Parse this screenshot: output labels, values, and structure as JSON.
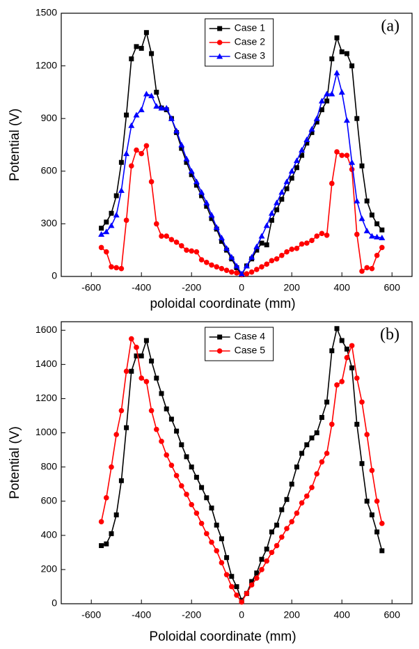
{
  "chart_data": [
    {
      "type": "line",
      "annotation": "(a)",
      "x_label": "poloidal coordinate (mm)",
      "y_label": "Potential (V)",
      "xlim": [
        -720,
        680
      ],
      "ylim": [
        0,
        1500
      ],
      "xticks": [
        -600,
        -400,
        -200,
        0,
        200,
        400,
        600
      ],
      "yticks": [
        0,
        300,
        600,
        900,
        1200,
        1500
      ],
      "legend": "upper center",
      "x": [
        -560,
        -540,
        -520,
        -500,
        -480,
        -460,
        -440,
        -420,
        -400,
        -380,
        -360,
        -340,
        -320,
        -300,
        -280,
        -260,
        -240,
        -220,
        -200,
        -180,
        -160,
        -140,
        -120,
        -100,
        -80,
        -60,
        -40,
        -20,
        0,
        20,
        40,
        60,
        80,
        100,
        120,
        140,
        160,
        180,
        200,
        220,
        240,
        260,
        280,
        300,
        320,
        340,
        360,
        380,
        400,
        420,
        440,
        460,
        480,
        500,
        520,
        540,
        560
      ],
      "series": [
        {
          "name": "Case 1",
          "color": "#000000",
          "marker": "square",
          "values": [
            275,
            310,
            360,
            460,
            650,
            920,
            1240,
            1310,
            1300,
            1390,
            1270,
            1050,
            960,
            950,
            900,
            820,
            730,
            650,
            580,
            520,
            460,
            400,
            330,
            270,
            200,
            150,
            100,
            50,
            10,
            60,
            100,
            150,
            190,
            180,
            320,
            380,
            440,
            500,
            560,
            620,
            690,
            760,
            820,
            880,
            950,
            1000,
            1240,
            1360,
            1280,
            1270,
            1200,
            900,
            630,
            430,
            350,
            300,
            265
          ]
        },
        {
          "name": "Case 2",
          "color": "#ff0000",
          "marker": "circle",
          "values": [
            165,
            140,
            55,
            50,
            45,
            320,
            630,
            720,
            700,
            745,
            540,
            300,
            230,
            230,
            210,
            195,
            175,
            150,
            145,
            140,
            95,
            80,
            65,
            55,
            45,
            35,
            25,
            20,
            10,
            15,
            25,
            40,
            55,
            70,
            90,
            100,
            120,
            140,
            155,
            160,
            185,
            190,
            205,
            230,
            245,
            235,
            530,
            710,
            690,
            690,
            610,
            240,
            30,
            50,
            45,
            120,
            165
          ]
        },
        {
          "name": "Case 3",
          "color": "#0000ff",
          "marker": "triangle",
          "values": [
            240,
            255,
            290,
            350,
            490,
            700,
            860,
            920,
            950,
            1040,
            1030,
            970,
            960,
            960,
            900,
            830,
            750,
            670,
            600,
            540,
            480,
            420,
            350,
            280,
            220,
            160,
            110,
            60,
            15,
            60,
            110,
            170,
            230,
            290,
            360,
            420,
            480,
            540,
            600,
            660,
            720,
            780,
            840,
            900,
            1000,
            1040,
            1040,
            1160,
            1050,
            890,
            650,
            430,
            330,
            260,
            230,
            225,
            220
          ]
        }
      ]
    },
    {
      "type": "line",
      "annotation": "(b)",
      "x_label": "Poloidal coordinate (mm)",
      "y_label": "Potential (V)",
      "xlim": [
        -720,
        680
      ],
      "ylim": [
        0,
        1650
      ],
      "xticks": [
        -600,
        -400,
        -200,
        0,
        200,
        400,
        600
      ],
      "yticks": [
        0,
        200,
        400,
        600,
        800,
        1000,
        1200,
        1400,
        1600
      ],
      "legend": "upper center",
      "x": [
        -560,
        -540,
        -520,
        -500,
        -480,
        -460,
        -440,
        -420,
        -400,
        -380,
        -360,
        -340,
        -320,
        -300,
        -280,
        -260,
        -240,
        -220,
        -200,
        -180,
        -160,
        -140,
        -120,
        -100,
        -80,
        -60,
        -40,
        -20,
        0,
        20,
        40,
        60,
        80,
        100,
        120,
        140,
        160,
        180,
        200,
        220,
        240,
        260,
        280,
        300,
        320,
        340,
        360,
        380,
        400,
        420,
        440,
        460,
        480,
        500,
        520,
        540,
        560
      ],
      "series": [
        {
          "name": "Case 4",
          "color": "#000000",
          "marker": "square",
          "values": [
            340,
            350,
            410,
            520,
            720,
            1030,
            1360,
            1450,
            1450,
            1540,
            1420,
            1320,
            1230,
            1140,
            1080,
            1010,
            930,
            860,
            800,
            740,
            680,
            620,
            560,
            460,
            380,
            270,
            160,
            100,
            20,
            60,
            130,
            180,
            260,
            320,
            420,
            460,
            550,
            610,
            700,
            800,
            880,
            930,
            970,
            1000,
            1090,
            1180,
            1480,
            1610,
            1540,
            1490,
            1380,
            1050,
            820,
            600,
            520,
            420,
            310
          ]
        },
        {
          "name": "Case 5",
          "color": "#ff0000",
          "marker": "circle",
          "values": [
            480,
            620,
            800,
            990,
            1130,
            1360,
            1550,
            1500,
            1320,
            1300,
            1130,
            1020,
            950,
            870,
            810,
            750,
            690,
            640,
            580,
            530,
            470,
            410,
            360,
            310,
            240,
            170,
            100,
            50,
            10,
            60,
            110,
            150,
            200,
            250,
            300,
            340,
            390,
            440,
            480,
            530,
            590,
            630,
            680,
            760,
            830,
            880,
            1050,
            1280,
            1300,
            1440,
            1510,
            1320,
            1180,
            990,
            780,
            600,
            470
          ]
        }
      ]
    }
  ]
}
